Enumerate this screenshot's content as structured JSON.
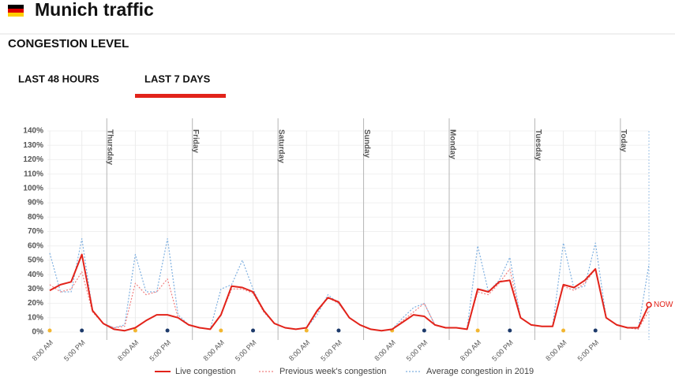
{
  "header": {
    "title": "Munich traffic",
    "section": "CONGESTION LEVEL"
  },
  "tabs": [
    {
      "label": "LAST 48 HOURS",
      "active": false
    },
    {
      "label": "LAST 7 DAYS",
      "active": true
    }
  ],
  "chart_data": {
    "type": "line",
    "categories": [
      "8:00 AM",
      null,
      null,
      "5:00 PM",
      null,
      null,
      null,
      null,
      "8:00 AM",
      null,
      null,
      "5:00 PM",
      null,
      null,
      null,
      null,
      "8:00 AM",
      null,
      null,
      "5:00 PM",
      null,
      null,
      null,
      null,
      "8:00 AM",
      null,
      null,
      "5:00 PM",
      null,
      null,
      null,
      null,
      "8:00 AM",
      null,
      null,
      "5:00 PM",
      null,
      null,
      null,
      null,
      "8:00 AM",
      null,
      null,
      "5:00 PM",
      null,
      null,
      null,
      null,
      "8:00 AM",
      null,
      null,
      "5:00 PM",
      null,
      null,
      null,
      null,
      null
    ],
    "days": [
      "Thursday",
      "Friday",
      "Saturday",
      "Sunday",
      "Monday",
      "Tuesday",
      "Today"
    ],
    "series": [
      {
        "name": "Live congestion",
        "color": "#e2231a",
        "style": "solid",
        "values": [
          29,
          33,
          35,
          54,
          15,
          6,
          2,
          1,
          3,
          8,
          12,
          12,
          10,
          5,
          3,
          2,
          12,
          32,
          31,
          28,
          15,
          6,
          3,
          2,
          3,
          15,
          24,
          21,
          10,
          5,
          2,
          1,
          2,
          7,
          12,
          11,
          5,
          3,
          3,
          2,
          30,
          28,
          35,
          36,
          10,
          5,
          4,
          4,
          33,
          31,
          36,
          44,
          10,
          5,
          3,
          3,
          19
        ]
      },
      {
        "name": "Previous week's congestion",
        "color": "#f08080",
        "style": "dotted",
        "values": [
          33,
          28,
          30,
          42,
          14,
          6,
          3,
          4,
          34,
          26,
          28,
          37,
          10,
          5,
          3,
          2,
          12,
          30,
          30,
          27,
          14,
          6,
          3,
          2,
          3,
          14,
          24,
          20,
          10,
          5,
          2,
          1,
          2,
          8,
          14,
          20,
          5,
          3,
          3,
          2,
          28,
          26,
          34,
          44,
          10,
          5,
          4,
          4,
          32,
          29,
          34,
          44,
          10,
          5,
          3,
          2,
          15
        ]
      },
      {
        "name": "Average congestion in 2019",
        "color": "#7fb0e0",
        "style": "dotted",
        "values": [
          55,
          28,
          28,
          65,
          15,
          6,
          3,
          5,
          54,
          28,
          28,
          65,
          12,
          5,
          3,
          2,
          30,
          33,
          50,
          30,
          14,
          6,
          3,
          2,
          3,
          12,
          26,
          20,
          10,
          5,
          2,
          1,
          2,
          10,
          17,
          20,
          5,
          3,
          3,
          2,
          60,
          28,
          36,
          52,
          10,
          5,
          4,
          4,
          62,
          30,
          32,
          62,
          10,
          5,
          3,
          2,
          47
        ]
      }
    ],
    "annotation": "NOW",
    "ylim": [
      0,
      140
    ],
    "yticks": [
      {
        "value": 0,
        "label": "0%"
      },
      {
        "value": 10,
        "label": "10%"
      },
      {
        "value": 20,
        "label": "20%"
      },
      {
        "value": 30,
        "label": "30%"
      },
      {
        "value": 40,
        "label": "40%"
      },
      {
        "value": 50,
        "label": "50%"
      },
      {
        "value": 60,
        "label": "60%"
      },
      {
        "value": 70,
        "label": "70%"
      },
      {
        "value": 80,
        "label": "80%"
      },
      {
        "value": 90,
        "label": "90%"
      },
      {
        "value": 100,
        "label": "100%"
      },
      {
        "value": 110,
        "label": "110%"
      },
      {
        "value": 120,
        "label": "120%"
      },
      {
        "value": 130,
        "label": "130%"
      },
      {
        "value": 140,
        "label": "140%"
      }
    ],
    "grid": true
  }
}
